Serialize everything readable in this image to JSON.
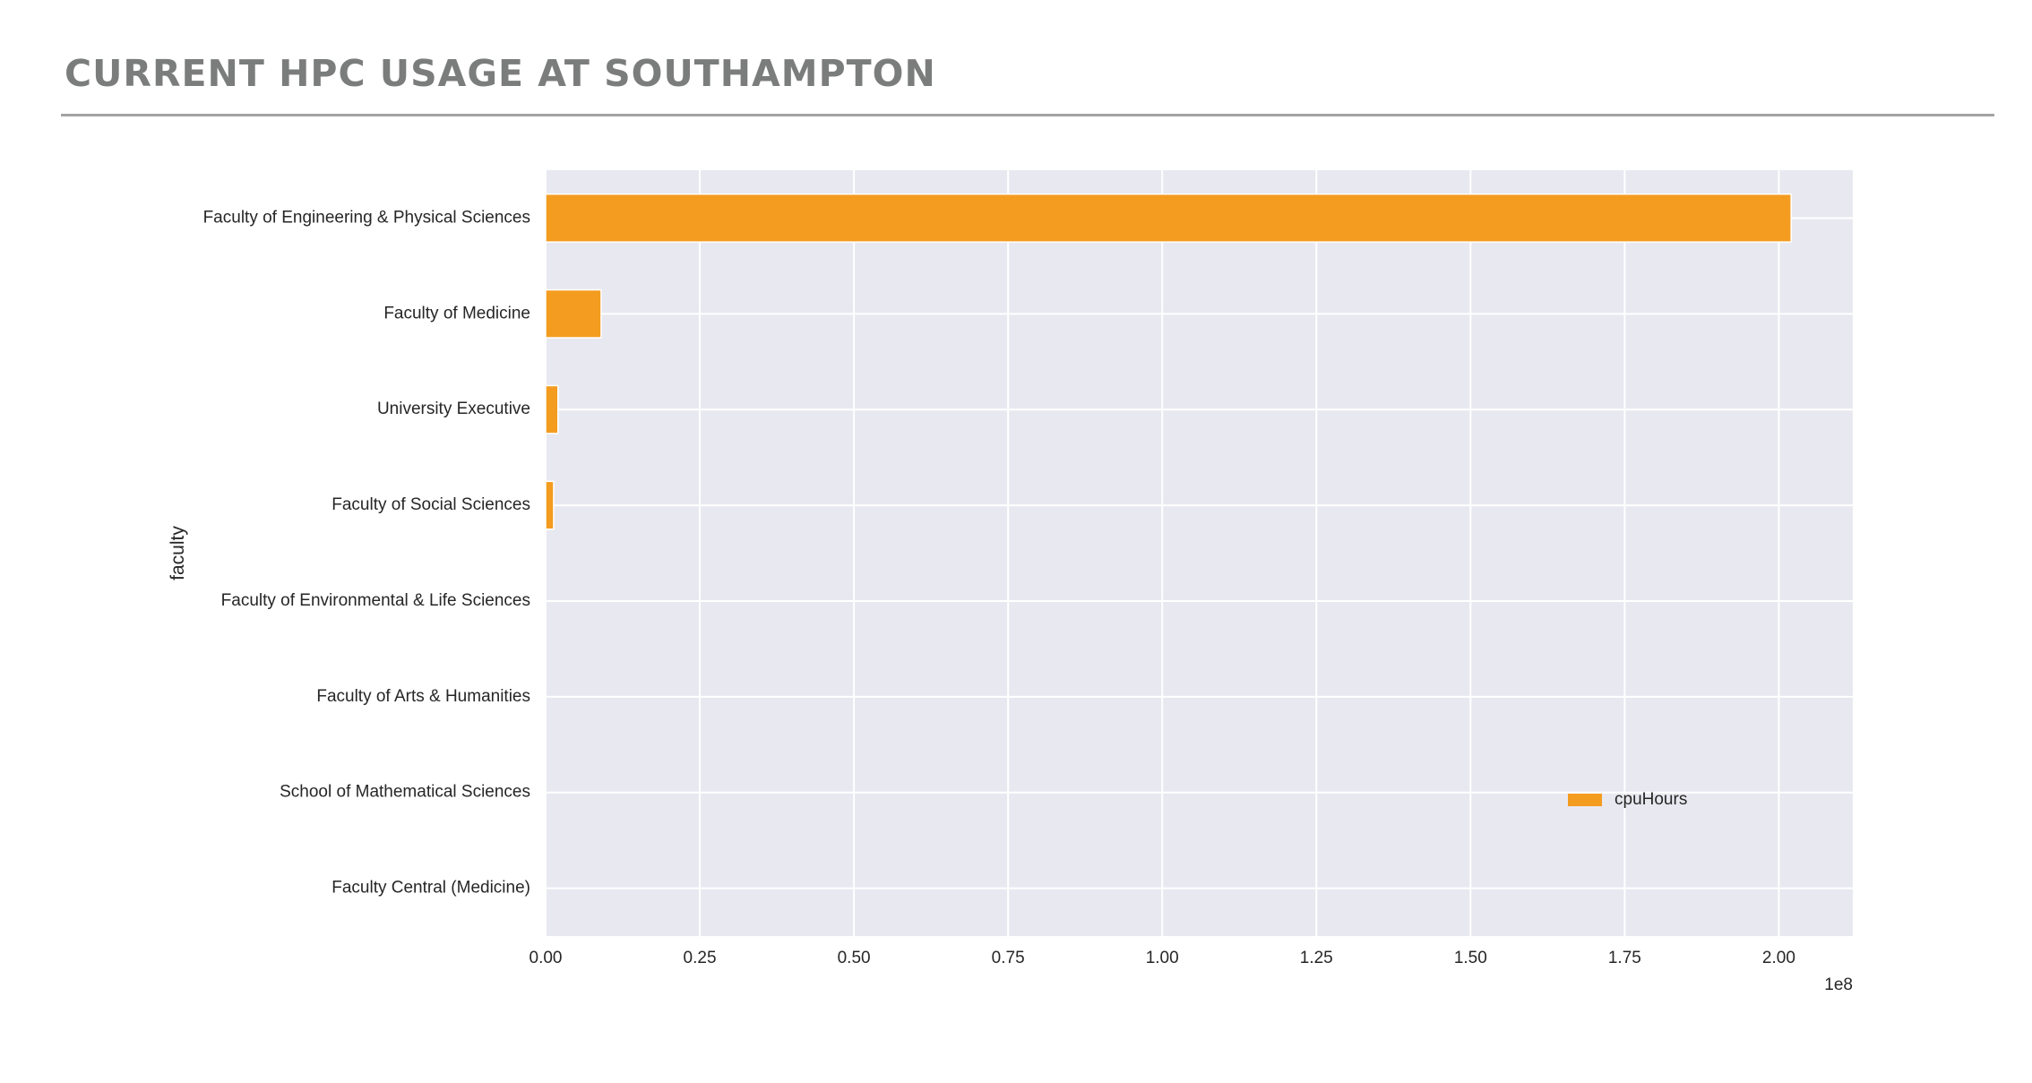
{
  "page": {
    "title": "CURRENT HPC USAGE AT SOUTHAMPTON"
  },
  "colors": {
    "title": "#7b7d7c",
    "rule": "#a3a3a3",
    "plot_background": "#e8e8f0",
    "grid": "#ffffff",
    "bar": "#f39c1f"
  },
  "chart_data": {
    "type": "bar",
    "orientation": "horizontal",
    "title": "",
    "xlabel": "",
    "ylabel": "faculty",
    "x_offset_label": "1e8",
    "xlim": [
      0,
      2.12
    ],
    "xticks": [
      0.0,
      0.25,
      0.5,
      0.75,
      1.0,
      1.25,
      1.5,
      1.75,
      2.0
    ],
    "xtick_labels": [
      "0.00",
      "0.25",
      "0.50",
      "0.75",
      "1.00",
      "1.25",
      "1.50",
      "1.75",
      "2.00"
    ],
    "categories": [
      "Faculty of Engineering & Physical Sciences",
      "Faculty of Medicine",
      "University Executive",
      "Faculty of Social Sciences",
      "Faculty of Environmental & Life Sciences",
      "Faculty of Arts & Humanities",
      "School of Mathematical Sciences",
      "Faculty Central (Medicine)"
    ],
    "series": [
      {
        "name": "cpuHours",
        "values": [
          2.02,
          0.09,
          0.02,
          0.013,
          0,
          0,
          0,
          0
        ]
      }
    ],
    "grid": true,
    "legend": {
      "position": "lower right",
      "entries": [
        "cpuHours"
      ]
    }
  }
}
